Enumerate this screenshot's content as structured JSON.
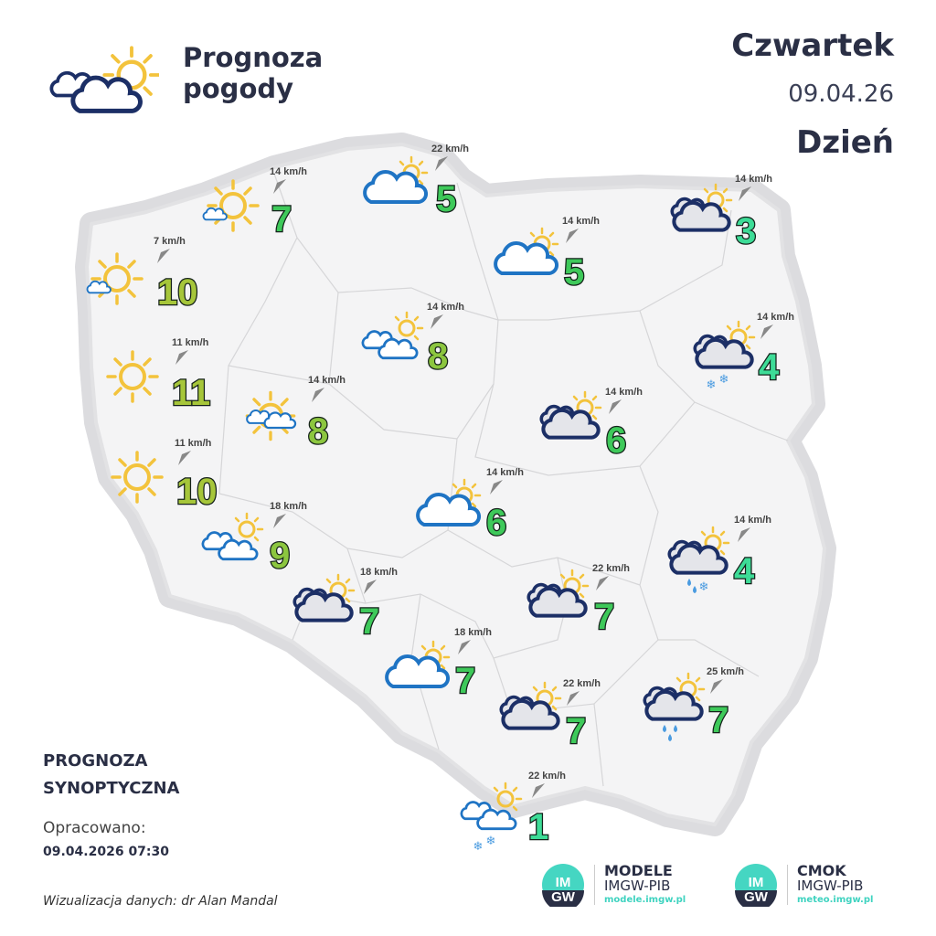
{
  "header": {
    "title_line1": "Prognoza",
    "title_line2": "pogody",
    "day": "Czwartek",
    "date": "09.04.26",
    "period": "Dzień"
  },
  "footer": {
    "synoptic_line1": "PROGNOZA",
    "synoptic_line2": "SYNOPTYCZNA",
    "prepared_label": "Opracowano:",
    "prepared_date": "09.04.2026 07:30",
    "credit": "Wizualizacja danych: dr Alan Mandal"
  },
  "logos": [
    {
      "mark": "IMGW",
      "name": "MODELE",
      "org": "IMGW-PIB",
      "url": "modele.imgw.pl"
    },
    {
      "mark": "IMGW",
      "name": "CMOK",
      "org": "IMGW-PIB",
      "url": "meteo.imgw.pl"
    }
  ],
  "colors": {
    "temp_warm": "#a6c63a",
    "temp_mild": "#8cc63f",
    "temp_mid": "#3ec95a",
    "temp_cool": "#3ddc97",
    "cloud_blue": "#1f74c4",
    "cloud_dark": "#1c2f66",
    "sun": "#f3c33c",
    "map_fill": "#f3f3f4",
    "map_halo": "#d9d9dc"
  },
  "stations": [
    {
      "icon": "sun-small-cloud",
      "temp": "7",
      "wind": "14 km/h"
    },
    {
      "icon": "cloud-sun-light",
      "temp": "5",
      "wind": "22 km/h"
    },
    {
      "icon": "cloud-sun-dark",
      "temp": "3",
      "wind": "14 km/h"
    },
    {
      "icon": "sun-small-cloud",
      "temp": "10",
      "wind": "7 km/h"
    },
    {
      "icon": "cloud-sun-light",
      "temp": "5",
      "wind": "14 km/h"
    },
    {
      "icon": "clouds-sun-light",
      "temp": "8",
      "wind": "14 km/h"
    },
    {
      "icon": "cloud-sun-dark-snow",
      "temp": "4",
      "wind": "14 km/h"
    },
    {
      "icon": "sun",
      "temp": "11",
      "wind": "11 km/h"
    },
    {
      "icon": "sun-clouds",
      "temp": "8",
      "wind": "14 km/h"
    },
    {
      "icon": "cloud-sun-dark",
      "temp": "6",
      "wind": "14 km/h"
    },
    {
      "icon": "sun",
      "temp": "10",
      "wind": "11 km/h"
    },
    {
      "icon": "cloud-sun-light",
      "temp": "6",
      "wind": "14 km/h"
    },
    {
      "icon": "clouds-sun-light",
      "temp": "9",
      "wind": "18 km/h"
    },
    {
      "icon": "cloud-sun-dark-sleet",
      "temp": "4",
      "wind": "14 km/h"
    },
    {
      "icon": "cloud-sun-dark",
      "temp": "7",
      "wind": "18 km/h"
    },
    {
      "icon": "cloud-sun-dark",
      "temp": "7",
      "wind": "22 km/h"
    },
    {
      "icon": "cloud-sun-light",
      "temp": "7",
      "wind": "18 km/h"
    },
    {
      "icon": "cloud-sun-dark",
      "temp": "7",
      "wind": "22 km/h"
    },
    {
      "icon": "cloud-sun-dark-rain",
      "temp": "7",
      "wind": "25 km/h"
    },
    {
      "icon": "clouds-sun-light-snow",
      "temp": "1",
      "wind": "22 km/h"
    }
  ]
}
